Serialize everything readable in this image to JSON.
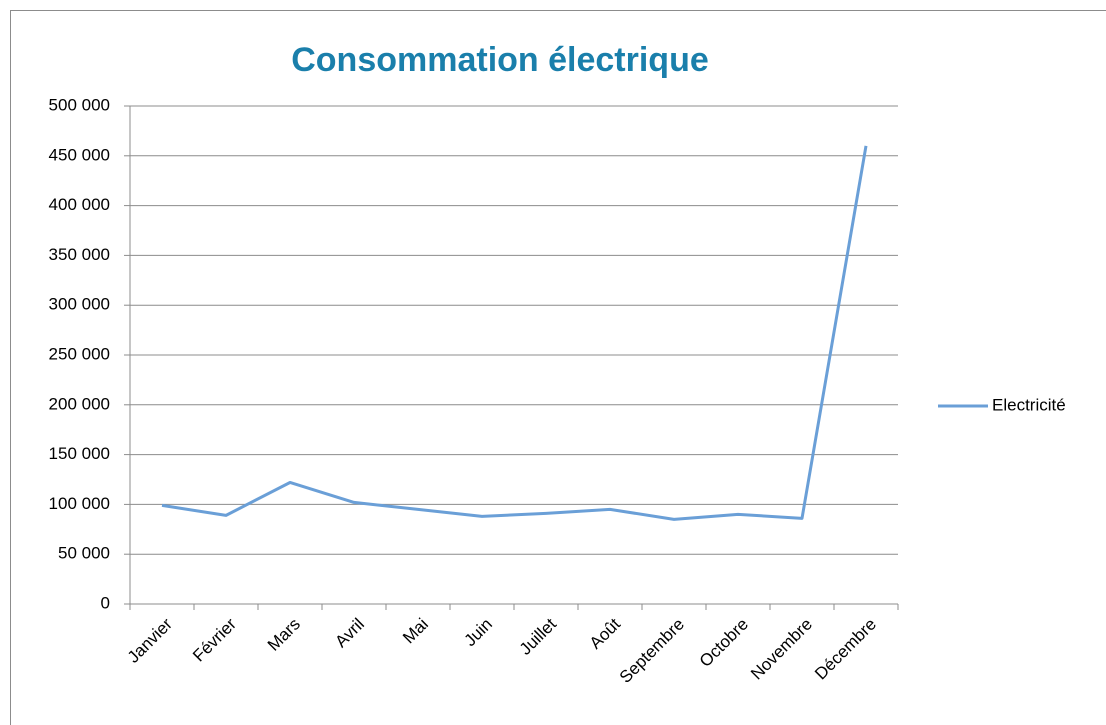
{
  "chart_data": {
    "type": "line",
    "title": "Consommation électrique",
    "categories": [
      "Janvier",
      "Février",
      "Mars",
      "Avril",
      "Mai",
      "Juin",
      "Juillet",
      "Août",
      "Septembre",
      "Octobre",
      "Novembre",
      "Décembre"
    ],
    "series": [
      {
        "name": "Electricité",
        "color": "#6a9fd7",
        "values": [
          99000,
          89000,
          122000,
          102000,
          95000,
          88000,
          91000,
          95000,
          85000,
          90000,
          86000,
          460000
        ]
      }
    ],
    "ylim": [
      0,
      500000
    ],
    "yticks": [
      0,
      {
        "value": 50000,
        "label": "50 000"
      },
      {
        "value": 100000,
        "label": "100 000"
      },
      {
        "value": 150000,
        "label": "150 000"
      },
      {
        "value": 200000,
        "label": "200 000"
      },
      {
        "value": 250000,
        "label": "250 000"
      },
      {
        "value": 300000,
        "label": "300 000"
      },
      {
        "value": 350000,
        "label": "350 000"
      },
      {
        "value": 400000,
        "label": "400 000"
      },
      {
        "value": 450000,
        "label": "450 000"
      },
      {
        "value": 500000,
        "label": "500 000"
      }
    ],
    "grid": true,
    "legend": "right"
  }
}
